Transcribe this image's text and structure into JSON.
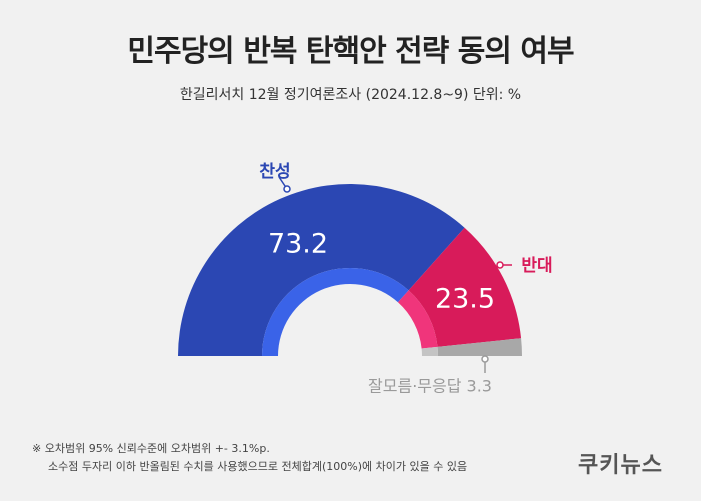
{
  "title": "민주당의 반복 탄핵안 전략 동의 여부",
  "subtitle": "한길리서치 12월 정기여론조사 (2024.12.8~9) 단위: %",
  "chart_data": {
    "type": "pie",
    "title": "민주당의 반복 탄핵안 전략 동의 여부",
    "subtitle": "한길리서치 12월 정기여론조사 (2024.12.8~9) 단위: %",
    "categories": [
      "찬성",
      "반대",
      "잘모름·무응답"
    ],
    "values": [
      73.2,
      23.5,
      3.3
    ],
    "value_labels": [
      "73.2",
      "23.5",
      ""
    ],
    "category_labels": [
      "찬성",
      "반대",
      "잘모름·무응답 3.3"
    ],
    "colors": [
      "#2b47b3",
      "#d81b5a",
      "#a8a8a8"
    ],
    "inner_colors": [
      "#3a63e8",
      "#f0357b",
      "#c4c4c4"
    ],
    "label_colors": [
      "#2b47b3",
      "#d81b5a",
      "#9a9a9a"
    ]
  },
  "notes": [
    "※ 오차범위 95% 신뢰수준에 오차범위 +- 3.1%p.",
    "소수점 두자리 이하 반올림된 수치를 사용했으므로 전체합계(100%)에 차이가 있을 수 있음"
  ],
  "brand": "쿠키뉴스"
}
